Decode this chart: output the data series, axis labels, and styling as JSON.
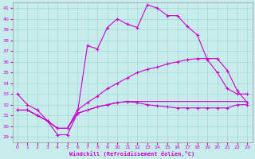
{
  "xlabel": "Windchill (Refroidissement éolien,°C)",
  "bg_color": "#c8ecec",
  "grid_color": "#a0d8d8",
  "line_color": "#cc00cc",
  "xlim": [
    -0.5,
    23.5
  ],
  "ylim": [
    28.5,
    41.5
  ],
  "xticks": [
    0,
    1,
    2,
    3,
    4,
    5,
    6,
    7,
    8,
    9,
    10,
    11,
    12,
    13,
    14,
    15,
    16,
    17,
    18,
    19,
    20,
    21,
    22,
    23
  ],
  "yticks": [
    29,
    30,
    31,
    32,
    33,
    34,
    35,
    36,
    37,
    38,
    39,
    40,
    41
  ],
  "hours": [
    0,
    1,
    2,
    3,
    4,
    5,
    6,
    7,
    8,
    9,
    10,
    11,
    12,
    13,
    14,
    15,
    16,
    17,
    18,
    19,
    20,
    21,
    22,
    23
  ],
  "temp_main": [
    33.0,
    32.0,
    31.5,
    30.5,
    29.2,
    29.2,
    31.2,
    37.5,
    37.2,
    39.2,
    40.0,
    39.5,
    39.2,
    41.3,
    41.0,
    40.3,
    40.3,
    39.3,
    38.5,
    36.2,
    35.0,
    33.5,
    33.0,
    33.0
  ],
  "temp_line2": [
    31.5,
    31.5,
    31.0,
    30.5,
    29.8,
    29.8,
    31.5,
    32.2,
    32.8,
    33.5,
    34.0,
    34.5,
    35.0,
    35.3,
    35.5,
    35.8,
    36.0,
    36.2,
    36.3,
    36.3,
    36.3,
    35.2,
    33.3,
    32.2
  ],
  "temp_line3": [
    31.5,
    31.5,
    31.0,
    30.5,
    29.8,
    29.8,
    31.2,
    31.5,
    31.8,
    32.0,
    32.2,
    32.3,
    32.2,
    32.0,
    31.9,
    31.8,
    31.7,
    31.7,
    31.7,
    31.7,
    31.7,
    31.7,
    32.0,
    32.0
  ],
  "temp_line4": [
    31.5,
    31.5,
    31.0,
    30.5,
    29.8,
    29.8,
    31.2,
    31.5,
    31.8,
    32.0,
    32.2,
    32.3,
    32.3,
    32.3,
    32.3,
    32.3,
    32.3,
    32.3,
    32.3,
    32.3,
    32.3,
    32.3,
    32.3,
    32.3
  ]
}
